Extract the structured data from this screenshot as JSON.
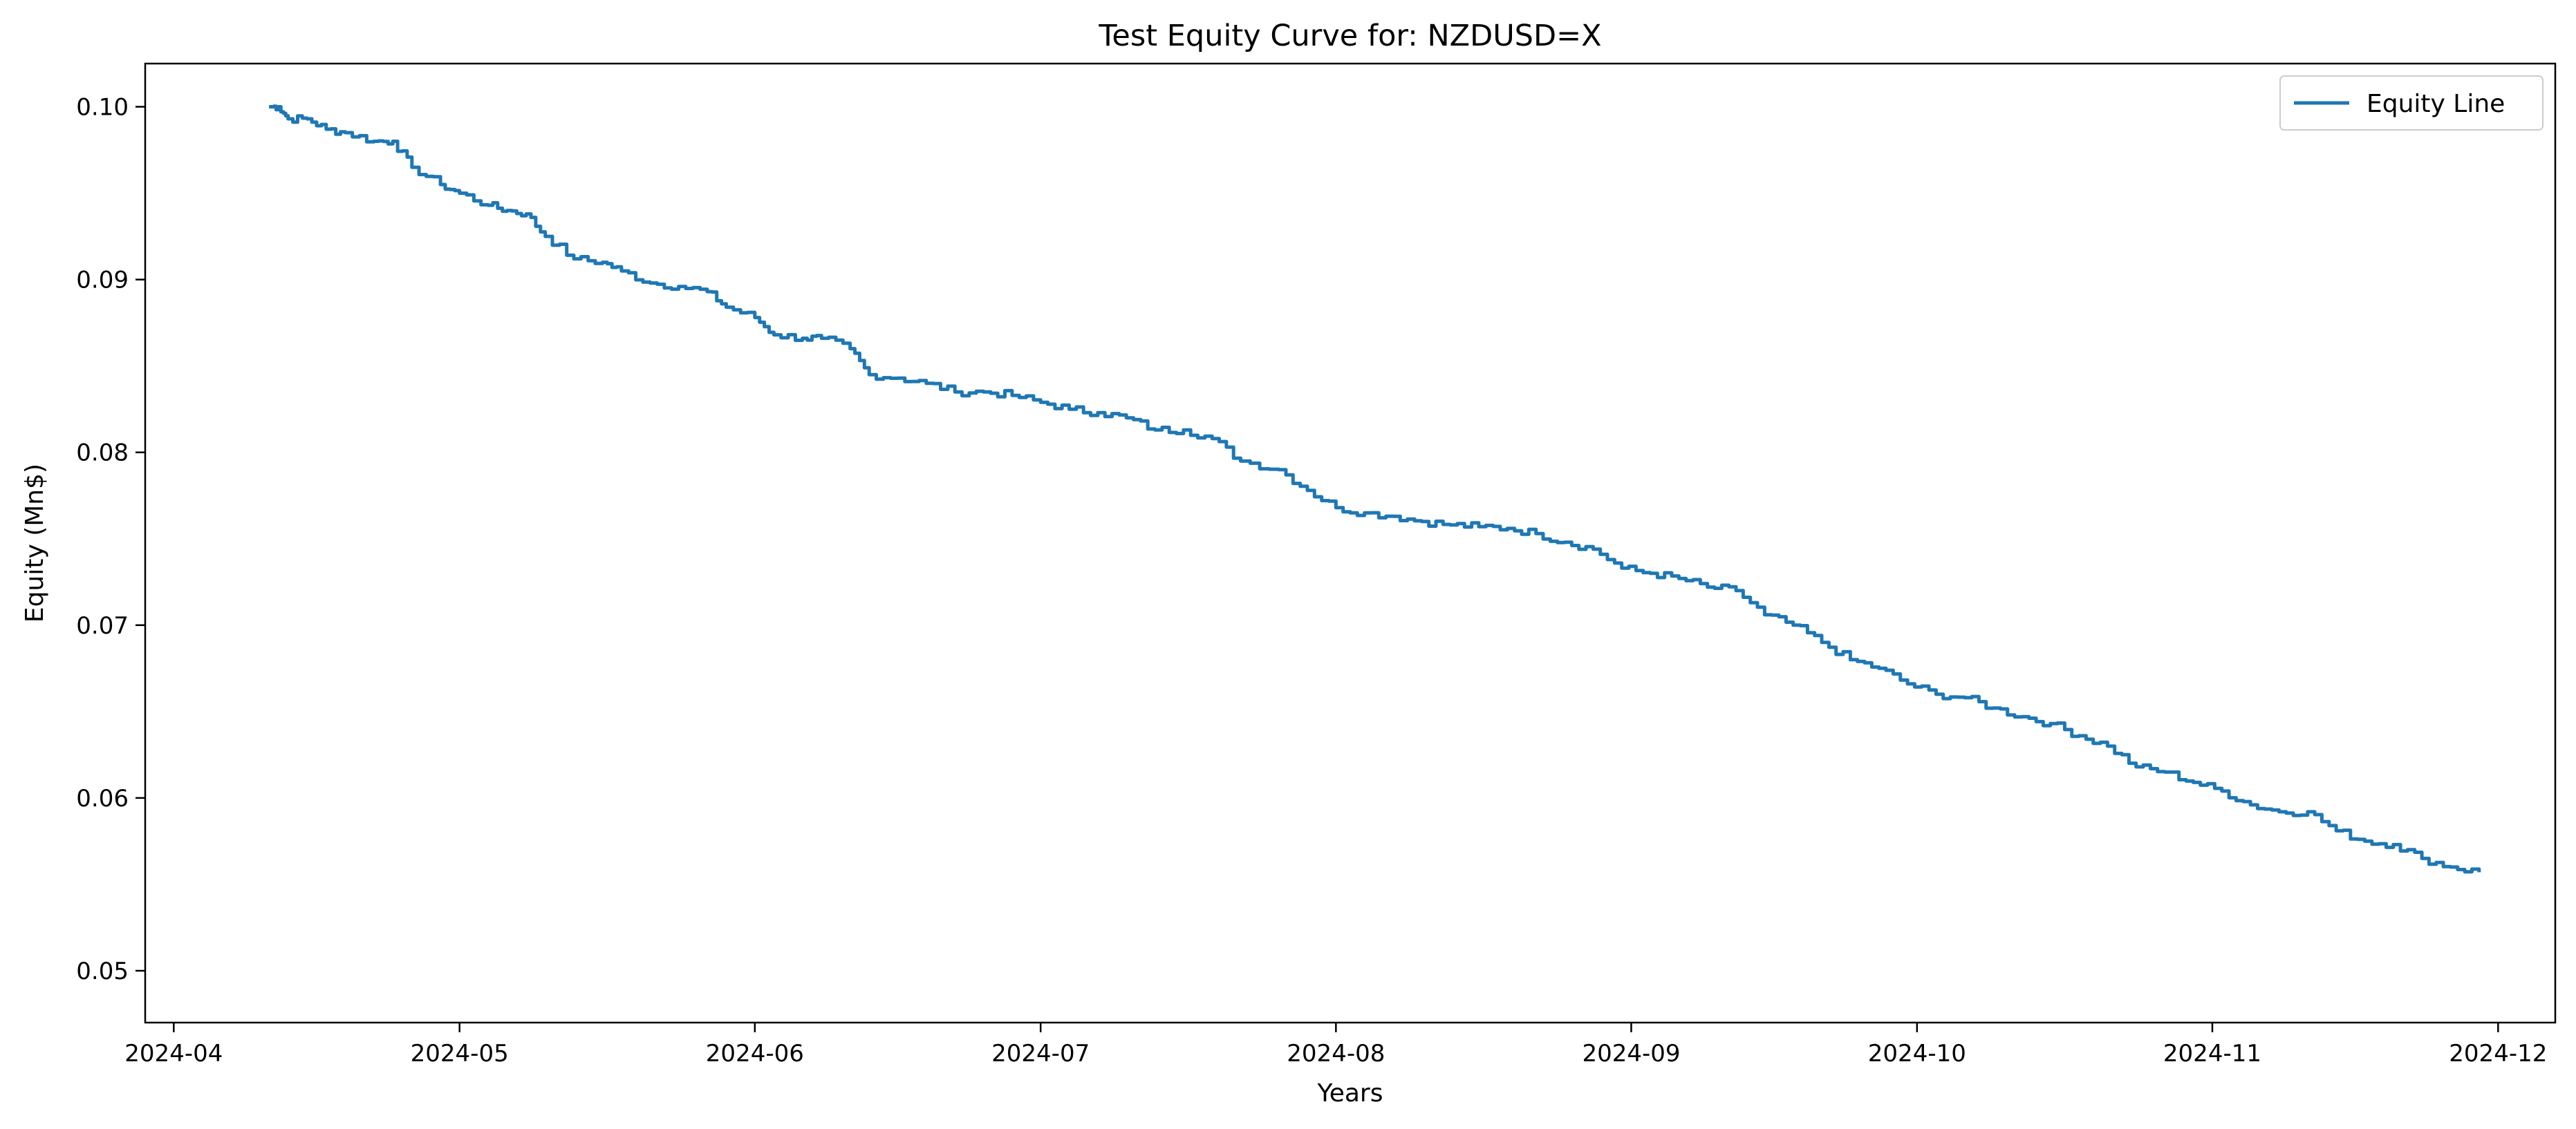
{
  "chart_data": {
    "type": "line",
    "title": "Test Equity Curve for: NZDUSD=X",
    "xlabel": "Years",
    "ylabel": "Equity (Mn$)",
    "legend": {
      "position": "top-right",
      "entries": [
        "Equity Line"
      ]
    },
    "grid": false,
    "xlim": [
      "2024-03-29",
      "2024-12-07"
    ],
    "ylim": [
      0.047,
      0.1025
    ],
    "x_ticks": [
      "2024-04",
      "2024-05",
      "2024-06",
      "2024-07",
      "2024-08",
      "2024-09",
      "2024-10",
      "2024-11",
      "2024-12"
    ],
    "y_ticks": [
      "0.05",
      "0.06",
      "0.07",
      "0.08",
      "0.09",
      "0.10"
    ],
    "colors": {
      "series": "#1f77b4"
    },
    "series": [
      {
        "name": "Equity Line",
        "x": [
          "2024-04-11",
          "2024-04-12",
          "2024-04-13",
          "2024-04-15",
          "2024-04-17",
          "2024-04-19",
          "2024-04-22",
          "2024-04-24",
          "2024-04-26",
          "2024-04-29",
          "2024-05-01",
          "2024-05-04",
          "2024-05-06",
          "2024-05-08",
          "2024-05-10",
          "2024-05-13",
          "2024-05-16",
          "2024-05-18",
          "2024-05-21",
          "2024-05-24",
          "2024-05-27",
          "2024-05-29",
          "2024-06-01",
          "2024-06-03",
          "2024-06-06",
          "2024-06-08",
          "2024-06-11",
          "2024-06-13",
          "2024-06-16",
          "2024-06-19",
          "2024-06-22",
          "2024-06-25",
          "2024-06-28",
          "2024-07-01",
          "2024-07-04",
          "2024-07-07",
          "2024-07-10",
          "2024-07-13",
          "2024-07-16",
          "2024-07-19",
          "2024-07-22",
          "2024-07-26",
          "2024-07-29",
          "2024-08-01",
          "2024-08-04",
          "2024-08-07",
          "2024-08-10",
          "2024-08-13",
          "2024-08-16",
          "2024-08-19",
          "2024-08-22",
          "2024-08-25",
          "2024-08-28",
          "2024-08-31",
          "2024-09-03",
          "2024-09-06",
          "2024-09-09",
          "2024-09-12",
          "2024-09-15",
          "2024-09-18",
          "2024-09-21",
          "2024-09-24",
          "2024-09-27",
          "2024-09-30",
          "2024-10-03",
          "2024-10-06",
          "2024-10-09",
          "2024-10-12",
          "2024-10-15",
          "2024-10-18",
          "2024-10-21",
          "2024-10-24",
          "2024-10-27",
          "2024-10-30",
          "2024-11-02",
          "2024-11-05",
          "2024-11-08",
          "2024-11-11",
          "2024-11-14",
          "2024-11-17",
          "2024-11-20",
          "2024-11-23",
          "2024-11-26",
          "2024-11-29"
        ],
        "y": [
          0.1,
          0.1,
          0.0993,
          0.0993,
          0.0987,
          0.0985,
          0.098,
          0.098,
          0.0965,
          0.0955,
          0.095,
          0.0943,
          0.094,
          0.0938,
          0.0925,
          0.0912,
          0.091,
          0.0905,
          0.0898,
          0.0896,
          0.0893,
          0.0884,
          0.0878,
          0.0868,
          0.0866,
          0.0866,
          0.086,
          0.0845,
          0.0843,
          0.084,
          0.0835,
          0.0835,
          0.0833,
          0.0829,
          0.0825,
          0.0823,
          0.082,
          0.0813,
          0.0813,
          0.0808,
          0.0795,
          0.079,
          0.0778,
          0.0768,
          0.0765,
          0.0763,
          0.076,
          0.0758,
          0.0757,
          0.0756,
          0.0753,
          0.0748,
          0.0744,
          0.0733,
          0.073,
          0.0727,
          0.0722,
          0.072,
          0.0706,
          0.07,
          0.069,
          0.068,
          0.0675,
          0.0666,
          0.066,
          0.0658,
          0.0652,
          0.0647,
          0.0643,
          0.0636,
          0.063,
          0.0618,
          0.0615,
          0.0609,
          0.0604,
          0.0596,
          0.0592,
          0.0592,
          0.0581,
          0.0575,
          0.0573,
          0.0565,
          0.056,
          0.0557
        ]
      }
    ]
  }
}
